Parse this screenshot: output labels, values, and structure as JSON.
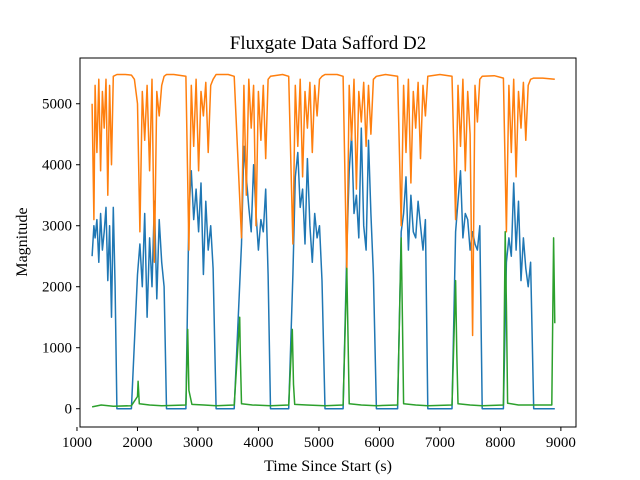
{
  "chart_data": {
    "type": "line",
    "title": "Fluxgate Data Safford D2",
    "xlabel": "Time Since Start (s)",
    "ylabel": "Magnitude",
    "xlim": [
      1050,
      9250
    ],
    "ylim": [
      -300,
      5750
    ],
    "xticks": [
      1000,
      2000,
      3000,
      4000,
      5000,
      6000,
      7000,
      8000,
      9000
    ],
    "yticks": [
      0,
      1000,
      2000,
      3000,
      4000,
      5000
    ],
    "grid": false,
    "legend": "none",
    "colors": {
      "blue": "#1f77b4",
      "orange": "#ff7f0e",
      "green": "#2ca02c"
    },
    "series": [
      {
        "color": "blue",
        "x": [
          1250,
          1280,
          1300,
          1330,
          1360,
          1390,
          1420,
          1450,
          1480,
          1510,
          1540,
          1570,
          1600,
          1630,
          1660,
          1900,
          2000,
          2040,
          2080,
          2120,
          2160,
          2200,
          2240,
          2280,
          2320,
          2360,
          2400,
          2440,
          2480,
          2800,
          2850,
          2890,
          2930,
          2970,
          3010,
          3050,
          3090,
          3130,
          3170,
          3210,
          3250,
          3300,
          3600,
          3720,
          3760,
          3800,
          3840,
          3880,
          3920,
          3960,
          4000,
          4040,
          4080,
          4120,
          4160,
          4200,
          4500,
          4570,
          4610,
          4650,
          4690,
          4730,
          4770,
          4810,
          4850,
          4890,
          4930,
          4970,
          5010,
          5050,
          5100,
          5400,
          5460,
          5500,
          5540,
          5580,
          5620,
          5660,
          5700,
          5740,
          5780,
          5820,
          5860,
          5900,
          5950,
          6300,
          6360,
          6400,
          6440,
          6480,
          6520,
          6560,
          6600,
          6640,
          6680,
          6720,
          6760,
          6800,
          7200,
          7260,
          7300,
          7340,
          7380,
          7420,
          7460,
          7500,
          7540,
          7580,
          7620,
          7660,
          7700,
          8050,
          8100,
          8140,
          8180,
          8220,
          8260,
          8300,
          8340,
          8380,
          8420,
          8460,
          8500,
          8550,
          8900
        ],
        "y": [
          2500,
          3000,
          2800,
          3100,
          2400,
          3200,
          2600,
          2900,
          3300,
          2100,
          3000,
          1500,
          3300,
          2000,
          0,
          0,
          2200,
          2700,
          2000,
          3200,
          1500,
          2800,
          2000,
          3400,
          1800,
          3100,
          2400,
          2000,
          0,
          0,
          3200,
          3900,
          3100,
          3600,
          2900,
          3700,
          2200,
          3400,
          2600,
          3000,
          2300,
          0,
          0,
          2700,
          4300,
          3800,
          3300,
          2900,
          4000,
          3200,
          2600,
          3100,
          2900,
          3600,
          2200,
          0,
          0,
          2200,
          3800,
          4200,
          3300,
          3600,
          2700,
          4100,
          3000,
          2400,
          3200,
          2800,
          3000,
          2100,
          0,
          0,
          2600,
          3900,
          4500,
          3200,
          3500,
          2800,
          4600,
          3000,
          2600,
          4400,
          3200,
          2200,
          0,
          0,
          2900,
          3200,
          3800,
          2600,
          3500,
          2900,
          2800,
          3400,
          3000,
          2600,
          3100,
          0,
          0,
          2900,
          3400,
          3900,
          2800,
          3200,
          3100,
          2600,
          2900,
          2700,
          2600,
          3000,
          0,
          0,
          2400,
          2800,
          2500,
          3700,
          2600,
          3400,
          2100,
          2800,
          2300,
          2000,
          2400,
          0,
          0
        ]
      },
      {
        "color": "orange",
        "x": [
          1250,
          1280,
          1300,
          1330,
          1360,
          1390,
          1420,
          1450,
          1480,
          1510,
          1540,
          1570,
          1600,
          1660,
          1800,
          1900,
          1950,
          2000,
          2040,
          2080,
          2120,
          2160,
          2200,
          2240,
          2280,
          2320,
          2360,
          2400,
          2440,
          2480,
          2600,
          2800,
          2850,
          2890,
          2930,
          2970,
          3010,
          3050,
          3090,
          3130,
          3170,
          3210,
          3250,
          3300,
          3500,
          3600,
          3720,
          3760,
          3800,
          3840,
          3880,
          3920,
          3960,
          4000,
          4040,
          4080,
          4120,
          4160,
          4200,
          4400,
          4500,
          4570,
          4610,
          4650,
          4690,
          4730,
          4770,
          4810,
          4850,
          4890,
          4930,
          4970,
          5010,
          5050,
          5100,
          5300,
          5400,
          5460,
          5500,
          5540,
          5580,
          5620,
          5660,
          5700,
          5740,
          5780,
          5820,
          5860,
          5900,
          5950,
          6100,
          6300,
          6360,
          6400,
          6440,
          6480,
          6520,
          6560,
          6600,
          6640,
          6680,
          6720,
          6760,
          6800,
          7000,
          7200,
          7260,
          7300,
          7340,
          7380,
          7420,
          7460,
          7500,
          7540,
          7580,
          7620,
          7660,
          7700,
          7900,
          8050,
          8100,
          8140,
          8180,
          8220,
          8260,
          8300,
          8340,
          8380,
          8420,
          8460,
          8500,
          8550,
          8700,
          8900
        ],
        "y": [
          5000,
          3100,
          5300,
          4200,
          5400,
          3900,
          5200,
          4600,
          5400,
          3500,
          5300,
          4000,
          5450,
          5480,
          5480,
          5470,
          5400,
          5000,
          2900,
          5200,
          4400,
          5300,
          3900,
          5400,
          2400,
          5200,
          4800,
          5300,
          5450,
          5480,
          5480,
          5450,
          2600,
          5300,
          4300,
          5400,
          3900,
          5200,
          4800,
          5350,
          4200,
          5300,
          5400,
          5480,
          5480,
          5450,
          2800,
          5300,
          3500,
          5400,
          4600,
          5300,
          3000,
          5200,
          4400,
          5300,
          4100,
          5400,
          5450,
          5480,
          5450,
          2700,
          5300,
          4300,
          5400,
          3800,
          5200,
          4600,
          5350,
          4200,
          5300,
          4800,
          5400,
          5450,
          5480,
          5480,
          5450,
          2200,
          5300,
          4400,
          5400,
          3600,
          5200,
          4700,
          5350,
          4300,
          5300,
          4500,
          5400,
          5450,
          5480,
          5450,
          3000,
          5300,
          4200,
          5400,
          3700,
          5200,
          4600,
          5350,
          4100,
          5300,
          4800,
          5450,
          5480,
          5450,
          3100,
          5300,
          4300,
          5400,
          3900,
          5200,
          4500,
          1200,
          5300,
          4700,
          5400,
          5450,
          5460,
          5420,
          2900,
          5300,
          4200,
          5400,
          3800,
          5200,
          4600,
          5350,
          4400,
          5300,
          5400,
          5420,
          5420,
          5400
        ]
      },
      {
        "color": "green",
        "x": [
          1250,
          1400,
          1600,
          1900,
          2000,
          2010,
          2030,
          2200,
          2400,
          2800,
          2830,
          2850,
          2900,
          3100,
          3300,
          3600,
          3690,
          3700,
          3720,
          3900,
          4200,
          4500,
          4560,
          4580,
          4600,
          4800,
          5100,
          5400,
          5460,
          5480,
          5500,
          5700,
          5950,
          6300,
          6360,
          6380,
          6400,
          6600,
          6800,
          7200,
          7260,
          7280,
          7300,
          7500,
          7700,
          8050,
          8080,
          8100,
          8120,
          8300,
          8550,
          8850,
          8880,
          8900
        ],
        "y": [
          30,
          60,
          40,
          50,
          200,
          450,
          80,
          60,
          50,
          60,
          1300,
          300,
          70,
          60,
          50,
          60,
          1500,
          900,
          80,
          60,
          50,
          60,
          1300,
          400,
          70,
          60,
          50,
          60,
          2300,
          1200,
          80,
          60,
          50,
          60,
          2800,
          1500,
          80,
          60,
          50,
          60,
          2100,
          900,
          80,
          60,
          50,
          60,
          2900,
          1700,
          90,
          60,
          60,
          60,
          2800,
          1400
        ]
      }
    ]
  }
}
